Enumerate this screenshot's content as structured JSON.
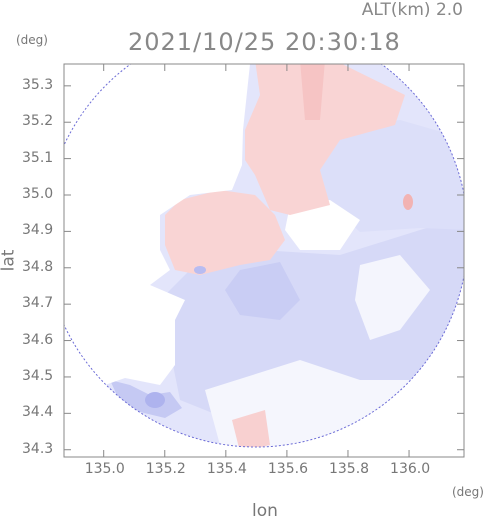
{
  "header": {
    "altitude_label": "ALT(km) 2.0",
    "timestamp": "2021/10/25 20:30:18",
    "lat_unit": "(deg)",
    "lon_unit": "(deg)"
  },
  "axes": {
    "y_title": "lat",
    "x_title": "lon",
    "y_range": [
      34.28,
      35.36
    ],
    "x_range": [
      134.87,
      136.18
    ],
    "y_ticks": [
      "35.3",
      "35.2",
      "35.1",
      "35.0",
      "34.9",
      "34.8",
      "34.7",
      "34.6",
      "34.5",
      "34.4",
      "34.3"
    ],
    "x_ticks": [
      "135.0",
      "135.2",
      "135.4",
      "135.6",
      "135.8",
      "136.0"
    ]
  },
  "colors": {
    "frame": "#888888",
    "positive": "#f9d2d2",
    "positive_strong": "#f4b4b4",
    "negative": "#d9dcf8",
    "negative_strong": "#b9bdf2",
    "negative_faint": "#e6e7fa",
    "edge": "#5a5ad0"
  }
}
